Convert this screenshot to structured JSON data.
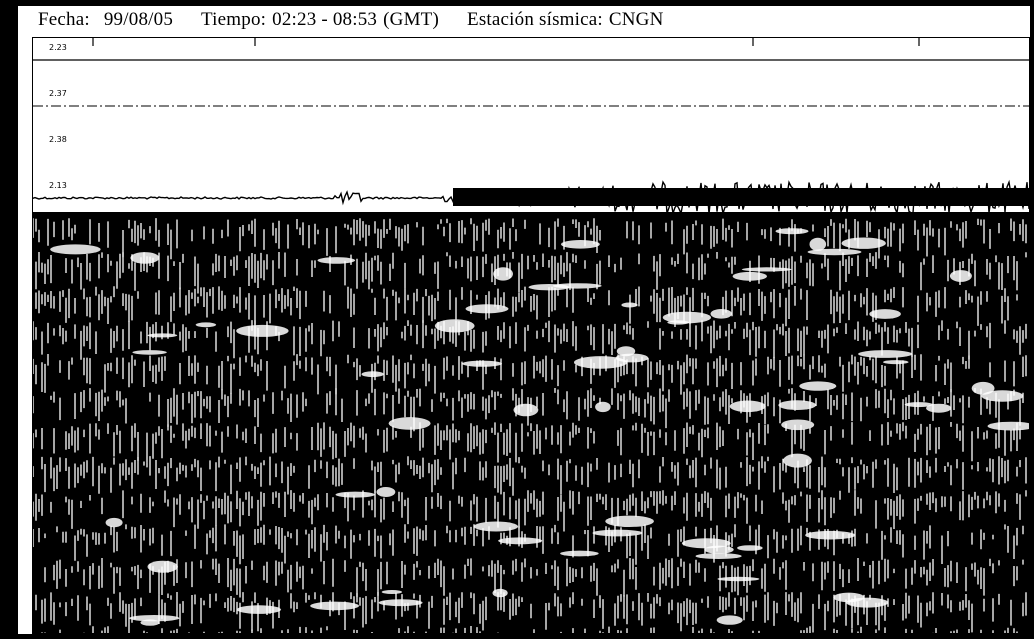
{
  "header": {
    "date_label": "Fecha:",
    "date_value": "99/08/05",
    "time_label": "Tiempo:",
    "time_value": "02:23 - 08:53",
    "time_zone": "(GMT)",
    "station_label": "Estación sísmica:",
    "station_value": "CNGN"
  },
  "trace_labels": [
    "2.23",
    "2.37",
    "2.38",
    "2.13"
  ],
  "colors": {
    "background": "#000000",
    "paper": "#ffffff",
    "ink": "#000000"
  }
}
